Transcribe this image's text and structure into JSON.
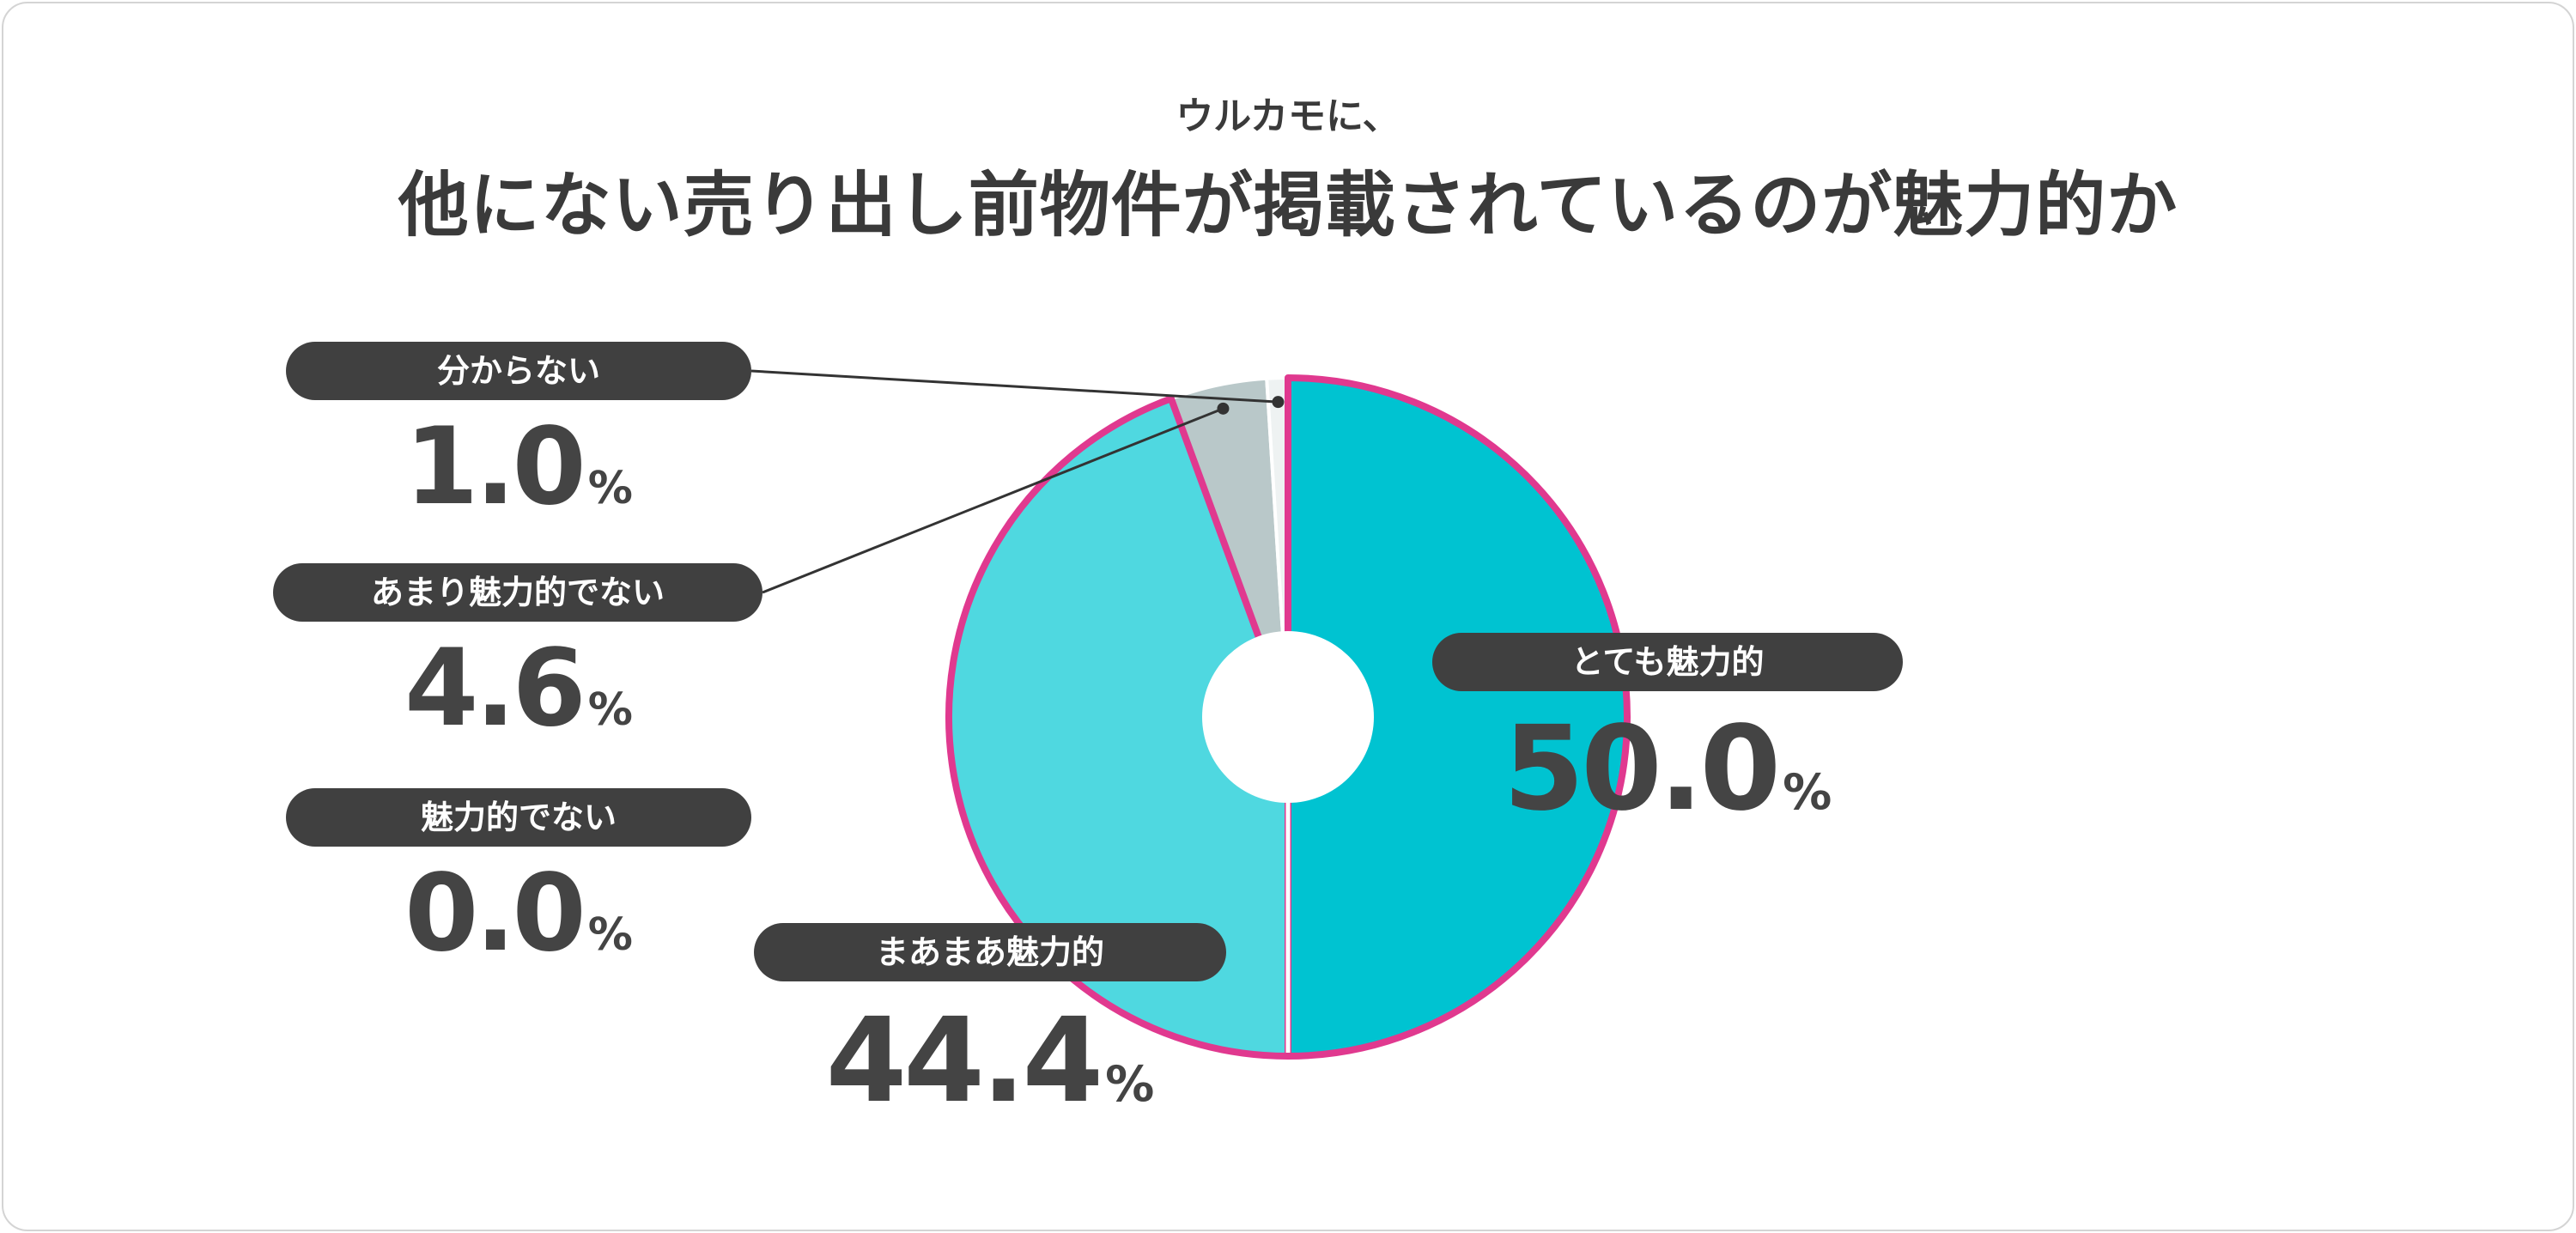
{
  "header": {
    "subtitle": "ウルカモに、",
    "title": "他にない売り出し前物件が掲載されているのが魅力的か"
  },
  "chart_data": {
    "type": "pie",
    "title": "他にない売り出し前物件が掲載されているのが魅力的か",
    "subtitle": "ウルカモに、",
    "unit": "%",
    "slices": [
      {
        "label": "とても魅力的",
        "value": 50.0,
        "display": "50.0",
        "color": "#00c3d1"
      },
      {
        "label": "まあまあ魅力的",
        "value": 44.4,
        "display": "44.4",
        "color": "#4fd8e0"
      },
      {
        "label": "魅力的でない",
        "value": 0.0,
        "display": "0.0",
        "color": "#7a7a7a"
      },
      {
        "label": "あまり魅力的でない",
        "value": 4.6,
        "display": "4.6",
        "color": "#b9c8c9"
      },
      {
        "label": "分からない",
        "value": 1.0,
        "display": "1.0",
        "color": "#eef2f2"
      }
    ],
    "highlight_color": "#e0398f",
    "highlight_slices": [
      "とても魅力的",
      "まあまあ魅力的"
    ]
  }
}
